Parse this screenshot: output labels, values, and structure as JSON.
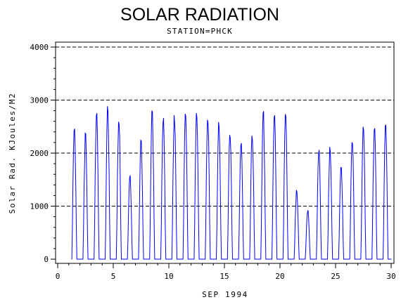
{
  "chart_data": {
    "type": "line",
    "title": "SOLAR RADIATION",
    "subtitle": "STATION=PHCK",
    "xlabel": "SEP 1994",
    "ylabel": "Solar Rad. KJoules/M2",
    "xlim": [
      0,
      30
    ],
    "ylim": [
      0,
      4000
    ],
    "xticks": [
      "0",
      "5",
      "10",
      "15",
      "20",
      "25",
      "30"
    ],
    "yticks": [
      "0",
      "1000",
      "2000",
      "3000",
      "4000"
    ],
    "grid": "horizontal dashed at 1000, 2000, 3000, 4000",
    "series_color": "#0000ff",
    "series": [
      {
        "daily_peaks": [
          {
            "day": 1,
            "peak": 2650
          },
          {
            "day": 2,
            "peak": 2470
          },
          {
            "day": 3,
            "peak": 2930
          },
          {
            "day": 4,
            "peak": 2980
          },
          {
            "day": 5,
            "peak": 2820
          },
          {
            "day": 6,
            "peak": 1650
          },
          {
            "day": 7,
            "peak": 2300
          },
          {
            "day": 8,
            "peak": 2940
          },
          {
            "day": 9,
            "peak": 2850
          },
          {
            "day": 10,
            "peak": 2880
          },
          {
            "day": 11,
            "peak": 2950
          },
          {
            "day": 12,
            "peak": 2920
          },
          {
            "day": 13,
            "peak": 2880
          },
          {
            "day": 14,
            "peak": 2650
          },
          {
            "day": 15,
            "peak": 2560
          },
          {
            "day": 16,
            "peak": 2320
          },
          {
            "day": 17,
            "peak": 2540
          },
          {
            "day": 18,
            "peak": 2870
          },
          {
            "day": 19,
            "peak": 2870
          },
          {
            "day": 20,
            "peak": 2900
          },
          {
            "day": 21,
            "peak": 1400
          },
          {
            "day": 22,
            "peak": 980
          },
          {
            "day": 23,
            "peak": 2230
          },
          {
            "day": 24,
            "peak": 2260
          },
          {
            "day": 25,
            "peak": 1860
          },
          {
            "day": 26,
            "peak": 2410
          },
          {
            "day": 27,
            "peak": 2640
          },
          {
            "day": 28,
            "peak": 2680
          },
          {
            "day": 29,
            "peak": 2730
          }
        ]
      }
    ]
  }
}
